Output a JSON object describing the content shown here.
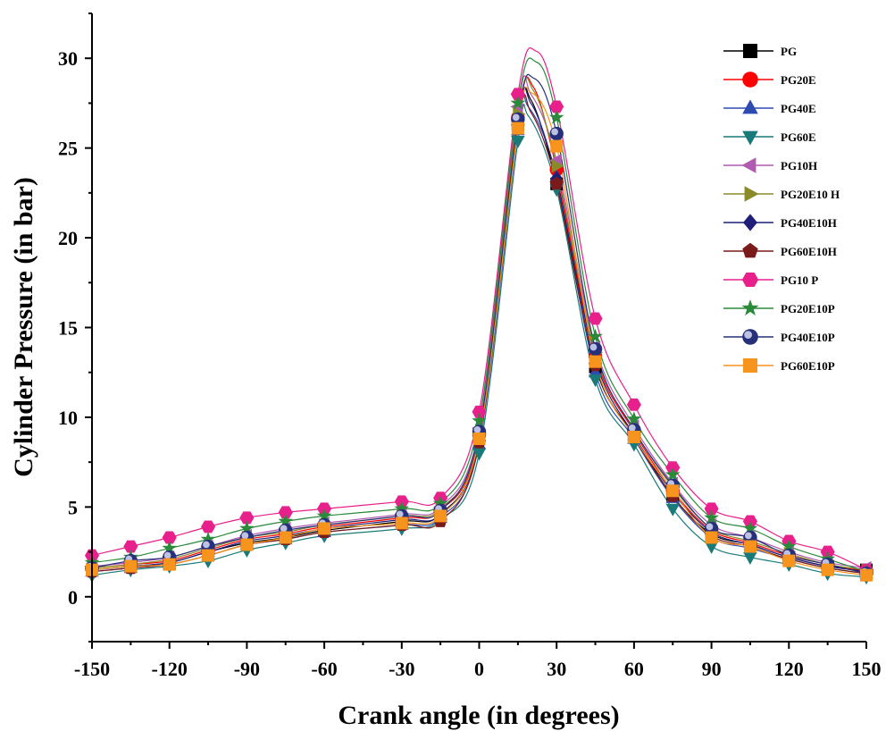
{
  "chart_data": {
    "type": "line",
    "title": "",
    "xlabel": "Crank angle (in degrees)",
    "ylabel": "Cylinder Pressure (in bar)",
    "xlim": [
      -150,
      150
    ],
    "ylim": [
      -2.5,
      32.5
    ],
    "xticks": [
      -150,
      -120,
      -90,
      -60,
      -30,
      0,
      30,
      60,
      90,
      120,
      150
    ],
    "xticklabels": [
      "-150",
      "-120",
      "-90",
      "-60",
      "-30",
      "0",
      "30",
      "60",
      "90",
      "120",
      "150"
    ],
    "yticks": [
      0,
      5,
      10,
      15,
      20,
      25,
      30
    ],
    "yticklabels": [
      "0",
      "5",
      "10",
      "15",
      "20",
      "25",
      "30"
    ],
    "grid": false,
    "legend_position": "top-right",
    "x": [
      -150,
      -135,
      -120,
      -105,
      -90,
      -75,
      -60,
      -30,
      -15,
      0,
      15,
      30,
      45,
      60,
      75,
      90,
      105,
      120,
      135,
      150
    ],
    "series": [
      {
        "name": "PG",
        "marker": "square",
        "color": "#000000",
        "peak": [
          20,
          27.7
        ],
        "values": [
          1.5,
          1.7,
          1.9,
          2.5,
          3.0,
          3.3,
          3.7,
          4.2,
          4.6,
          8.8,
          26.3,
          23.0,
          12.8,
          9.0,
          5.6,
          3.5,
          2.9,
          2.2,
          1.7,
          1.5
        ]
      },
      {
        "name": "PG20E",
        "marker": "circle",
        "color": "#ff0000",
        "peak": [
          21,
          28.4
        ],
        "values": [
          1.6,
          1.8,
          2.0,
          2.6,
          3.2,
          3.5,
          3.9,
          4.4,
          4.8,
          9.0,
          26.7,
          23.8,
          13.4,
          9.2,
          5.9,
          3.7,
          3.0,
          2.3,
          1.8,
          1.4
        ]
      },
      {
        "name": "PG40E",
        "marker": "triangle-up",
        "color": "#2e4cb0",
        "peak": [
          19,
          27.3
        ],
        "values": [
          1.4,
          1.6,
          1.8,
          2.3,
          2.9,
          3.2,
          3.6,
          4.0,
          4.4,
          8.5,
          26.0,
          23.4,
          12.5,
          8.8,
          5.5,
          3.3,
          2.7,
          2.1,
          1.6,
          1.3
        ]
      },
      {
        "name": "PG60E",
        "marker": "triangle-down",
        "color": "#1a7a7a",
        "peak": [
          19,
          26.8
        ],
        "values": [
          1.2,
          1.5,
          1.7,
          2.0,
          2.6,
          3.0,
          3.4,
          3.8,
          4.3,
          8.0,
          25.4,
          22.7,
          12.1,
          8.5,
          4.9,
          2.8,
          2.2,
          1.8,
          1.3,
          1.1
        ]
      },
      {
        "name": "PG10H",
        "marker": "triangle-left",
        "color": "#b05bb0",
        "peak": [
          20,
          28.0
        ],
        "values": [
          1.7,
          1.9,
          2.2,
          2.8,
          3.4,
          3.8,
          4.1,
          4.6,
          5.0,
          9.4,
          27.3,
          24.3,
          13.9,
          9.5,
          6.3,
          4.0,
          3.3,
          2.5,
          1.9,
          1.6
        ]
      },
      {
        "name": "PG20E10 H",
        "marker": "triangle-right",
        "color": "#8a8a2a",
        "peak": [
          21,
          28.2
        ],
        "values": [
          1.6,
          1.8,
          2.1,
          2.7,
          3.3,
          3.6,
          4.0,
          4.5,
          4.9,
          9.1,
          26.9,
          24.0,
          13.6,
          9.3,
          6.1,
          3.8,
          3.1,
          2.4,
          1.8,
          1.5
        ]
      },
      {
        "name": "PG40E10H",
        "marker": "diamond",
        "color": "#1f1f7a",
        "peak": [
          20,
          27.5
        ],
        "values": [
          1.5,
          1.7,
          1.9,
          2.5,
          3.1,
          3.4,
          3.8,
          4.3,
          4.6,
          8.7,
          26.4,
          23.3,
          13.2,
          9.0,
          5.8,
          3.6,
          2.9,
          2.2,
          1.7,
          1.4
        ]
      },
      {
        "name": "PG60E10H",
        "marker": "pentagon",
        "color": "#7a1a1a",
        "peak": [
          20,
          27.0
        ],
        "values": [
          1.4,
          1.6,
          1.8,
          2.3,
          2.9,
          3.2,
          3.6,
          4.0,
          4.2,
          8.6,
          26.2,
          23.0,
          12.9,
          8.9,
          5.6,
          3.4,
          2.8,
          2.1,
          1.6,
          1.3
        ]
      },
      {
        "name": "PG10 P",
        "marker": "hexagon",
        "color": "#e8208c",
        "peak": [
          22,
          30.4
        ],
        "values": [
          2.3,
          2.8,
          3.3,
          3.9,
          4.4,
          4.7,
          4.9,
          5.3,
          5.5,
          10.3,
          28.0,
          27.3,
          15.5,
          10.7,
          7.2,
          4.9,
          4.2,
          3.1,
          2.5,
          1.5
        ]
      },
      {
        "name": "PG20E10P",
        "marker": "star",
        "color": "#2a8a3a",
        "peak": [
          22,
          29.8
        ],
        "values": [
          1.9,
          2.2,
          2.7,
          3.2,
          3.8,
          4.2,
          4.5,
          4.9,
          5.2,
          9.8,
          27.5,
          26.7,
          14.5,
          9.9,
          6.8,
          4.4,
          3.8,
          2.8,
          2.1,
          1.4
        ]
      },
      {
        "name": "PG40E10P",
        "marker": "sphere",
        "color": "#26307a",
        "peak": [
          21,
          28.9
        ],
        "values": [
          1.6,
          2.0,
          2.2,
          2.8,
          3.3,
          3.7,
          4.0,
          4.5,
          4.8,
          9.2,
          26.6,
          25.8,
          13.8,
          9.3,
          6.2,
          3.8,
          3.3,
          2.3,
          1.8,
          1.3
        ]
      },
      {
        "name": "PG60E10P",
        "marker": "square",
        "color": "#f7941d",
        "peak": [
          20,
          28.1
        ],
        "values": [
          1.5,
          1.7,
          1.8,
          2.3,
          2.9,
          3.3,
          3.8,
          4.1,
          4.5,
          8.8,
          26.1,
          25.1,
          13.1,
          8.9,
          5.9,
          3.3,
          2.8,
          2.0,
          1.5,
          1.2
        ]
      }
    ]
  }
}
